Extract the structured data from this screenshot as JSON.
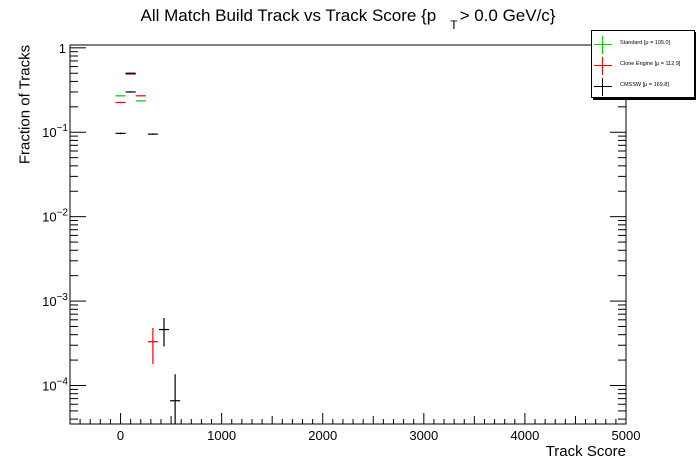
{
  "chart_data": {
    "type": "scatter",
    "title_main": "All Match Build Track vs Track Score {p",
    "title_sub": "T",
    "title_tail": "> 0.0 GeV/c}",
    "xlabel": "Track Score",
    "ylabel": "Fraction of Tracks",
    "xlim": [
      -500,
      5000
    ],
    "ylim": [
      3.5e-05,
      1.08
    ],
    "y_scale": "log",
    "x_ticks": [
      0,
      1000,
      2000,
      3000,
      4000,
      5000
    ],
    "x_tick_labels": [
      "0",
      "1000",
      "2000",
      "3000",
      "4000",
      "5000"
    ],
    "y_ticks": [
      1,
      0.1,
      0.01,
      0.001,
      0.0001
    ],
    "y_tick_labels": [
      {
        "base": "1",
        "exp": ""
      },
      {
        "base": "10",
        "exp": "−1"
      },
      {
        "base": "10",
        "exp": "−2"
      },
      {
        "base": "10",
        "exp": "−3"
      },
      {
        "base": "10",
        "exp": "−4"
      }
    ],
    "grid": false,
    "legend_position": "top-right",
    "series": [
      {
        "name": "Standard",
        "stat": "[μ = 105.0]",
        "color": "#00cc00",
        "points": [
          {
            "x": 0,
            "xerr": 50,
            "y": 0.27,
            "yerr": 0.004
          },
          {
            "x": 100,
            "xerr": 50,
            "y": 0.49,
            "yerr": 0.006
          },
          {
            "x": 200,
            "xerr": 50,
            "y": 0.235,
            "yerr": 0.004
          }
        ]
      },
      {
        "name": "Clone Engine",
        "stat": "[μ = 112.9]",
        "color": "#ee0000",
        "points": [
          {
            "x": 0,
            "xerr": 50,
            "y": 0.225,
            "yerr": 0.004
          },
          {
            "x": 100,
            "xerr": 50,
            "y": 0.49,
            "yerr": 0.006
          },
          {
            "x": 200,
            "xerr": 50,
            "y": 0.27,
            "yerr": 0.004
          },
          {
            "x": 320,
            "xerr": 50,
            "y": 0.00033,
            "yerr": 0.00015
          }
        ]
      },
      {
        "name": "CMSSW",
        "stat": "[μ = 169.8]",
        "color": "#000000",
        "points": [
          {
            "x": 0,
            "xerr": 50,
            "y": 0.097,
            "yerr": 0.002
          },
          {
            "x": 100,
            "xerr": 50,
            "y": 0.5,
            "yerr": 0.006
          },
          {
            "x": 100,
            "xerr": 50,
            "y": 0.3,
            "yerr": 0.005
          },
          {
            "x": 320,
            "xerr": 50,
            "y": 0.095,
            "yerr": 0.002
          },
          {
            "x": 430,
            "xerr": 50,
            "y": 0.00046,
            "yerr": 0.00017
          },
          {
            "x": 540,
            "xerr": 50,
            "y": 6.6e-05,
            "yerr": 7e-05
          }
        ]
      }
    ]
  }
}
